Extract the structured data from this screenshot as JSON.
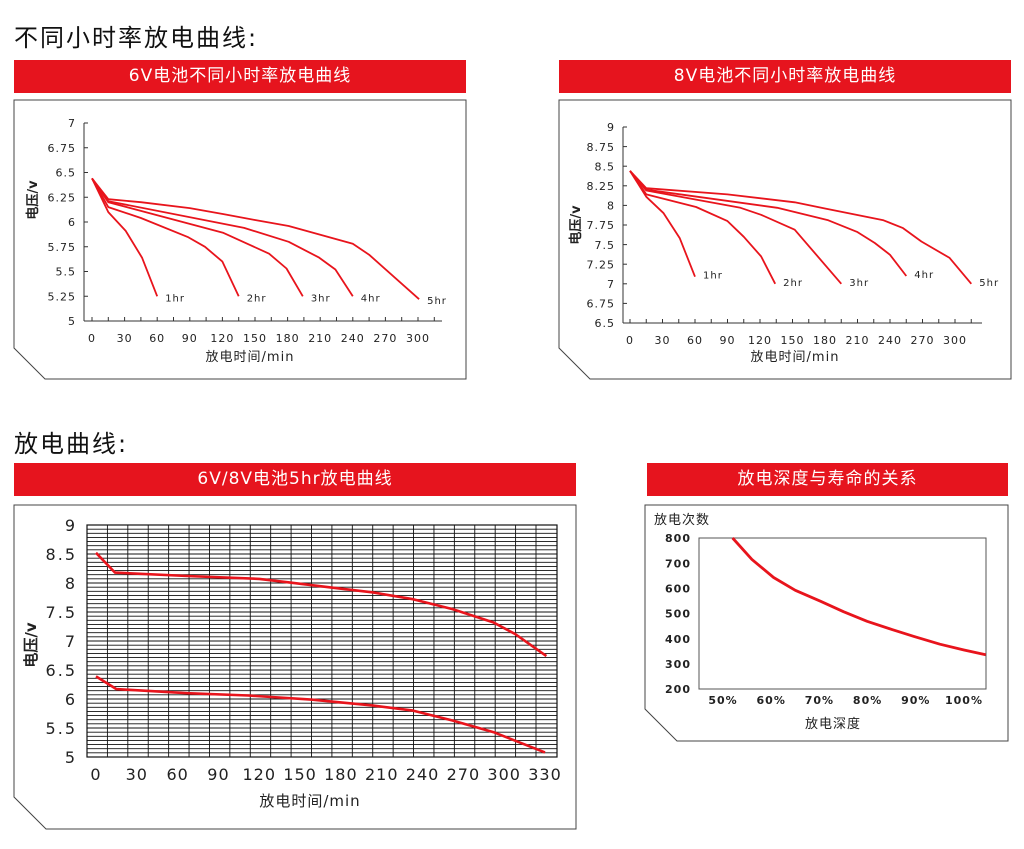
{
  "sections": {
    "top_title": "不同小时率放电曲线:",
    "bottom_title": "放电曲线:"
  },
  "colors": {
    "header": "#e6141e",
    "line": "#e8141c",
    "frame": "#333333"
  },
  "chart_data": [
    {
      "type": "line",
      "title": "6V电池不同小时率放电曲线",
      "xlabel": "放电时间/min",
      "ylabel": "电压/v",
      "xlim": [
        0,
        300
      ],
      "ylim": [
        5,
        7
      ],
      "xticks": [
        "0",
        "30",
        "60",
        "90",
        "120",
        "150",
        "180",
        "210",
        "240",
        "270",
        "300"
      ],
      "yticks": [
        "5",
        "5.25",
        "5.5",
        "5.75",
        "6",
        "6.25",
        "6.5",
        "6.75",
        "7"
      ],
      "grid": false,
      "series": [
        {
          "name": "1hr",
          "points": [
            [
              0,
              6.44
            ],
            [
              15,
              6.1
            ],
            [
              31,
              5.91
            ],
            [
              46,
              5.64
            ],
            [
              60,
              5.25
            ]
          ]
        },
        {
          "name": "2hr",
          "points": [
            [
              0,
              6.44
            ],
            [
              15,
              6.15
            ],
            [
              45,
              6.04
            ],
            [
              88,
              5.85
            ],
            [
              104,
              5.75
            ],
            [
              120,
              5.6
            ],
            [
              135,
              5.25
            ]
          ]
        },
        {
          "name": "3hr",
          "points": [
            [
              0,
              6.44
            ],
            [
              15,
              6.2
            ],
            [
              121,
              5.89
            ],
            [
              143,
              5.78
            ],
            [
              163,
              5.68
            ],
            [
              179,
              5.53
            ],
            [
              194,
              5.25
            ]
          ]
        },
        {
          "name": "4hr",
          "points": [
            [
              0,
              6.44
            ],
            [
              15,
              6.21
            ],
            [
              140,
              5.94
            ],
            [
              181,
              5.8
            ],
            [
              209,
              5.64
            ],
            [
              224,
              5.52
            ],
            [
              240,
              5.25
            ]
          ]
        },
        {
          "name": "5hr",
          "points": [
            [
              0,
              6.44
            ],
            [
              15,
              6.23
            ],
            [
              45,
              6.2
            ],
            [
              90,
              6.14
            ],
            [
              121,
              6.08
            ],
            [
              150,
              6.02
            ],
            [
              181,
              5.96
            ],
            [
              240,
              5.78
            ],
            [
              255,
              5.67
            ],
            [
              301,
              5.22
            ]
          ]
        }
      ]
    },
    {
      "type": "line",
      "title": "8V电池不同小时率放电曲线",
      "xlabel": "放电时间/min",
      "ylabel": "电压/v",
      "xlim": [
        0,
        300
      ],
      "ylim": [
        6.5,
        9
      ],
      "xticks": [
        "0",
        "30",
        "60",
        "90",
        "120",
        "150",
        "180",
        "210",
        "240",
        "270",
        "300"
      ],
      "yticks": [
        "6.5",
        "6.75",
        "7",
        "7.25",
        "7.5",
        "7.75",
        "8",
        "8.25",
        "8.5",
        "8.75",
        "9"
      ],
      "grid": false,
      "series": [
        {
          "name": "1hr",
          "points": [
            [
              0,
              8.44
            ],
            [
              15,
              8.11
            ],
            [
              31,
              7.9
            ],
            [
              46,
              7.58
            ],
            [
              60,
              7.09
            ]
          ]
        },
        {
          "name": "2hr",
          "points": [
            [
              0,
              8.44
            ],
            [
              15,
              8.14
            ],
            [
              61,
              7.98
            ],
            [
              90,
              7.8
            ],
            [
              105,
              7.6
            ],
            [
              121,
              7.35
            ],
            [
              134,
              7.0
            ]
          ]
        },
        {
          "name": "3hr",
          "points": [
            [
              0,
              8.44
            ],
            [
              15,
              8.19
            ],
            [
              102,
              7.97
            ],
            [
              121,
              7.88
            ],
            [
              152,
              7.69
            ],
            [
              195,
              7.0
            ]
          ]
        },
        {
          "name": "4hr",
          "points": [
            [
              0,
              8.44
            ],
            [
              15,
              8.2
            ],
            [
              136,
              7.97
            ],
            [
              183,
              7.81
            ],
            [
              210,
              7.66
            ],
            [
              226,
              7.52
            ],
            [
              240,
              7.37
            ],
            [
              255,
              7.1
            ]
          ]
        },
        {
          "name": "5hr",
          "points": [
            [
              0,
              8.44
            ],
            [
              15,
              8.22
            ],
            [
              90,
              8.14
            ],
            [
              152,
              8.04
            ],
            [
              180,
              7.96
            ],
            [
              234,
              7.81
            ],
            [
              252,
              7.71
            ],
            [
              269,
              7.54
            ],
            [
              295,
              7.33
            ],
            [
              315,
              7.0
            ]
          ]
        }
      ]
    },
    {
      "type": "line",
      "title": "6V/8V电池5hr放电曲线",
      "xlabel": "放电时间/min",
      "ylabel": "电压/v",
      "xlim": [
        0,
        330
      ],
      "ylim": [
        5,
        9
      ],
      "xticks": [
        "0",
        "30",
        "60",
        "90",
        "120",
        "150",
        "180",
        "210",
        "240",
        "270",
        "300",
        "330"
      ],
      "yticks": [
        "5",
        "5.5",
        "6",
        "6.5",
        "7",
        "7.5",
        "8",
        "8.5",
        "9"
      ],
      "grid": true,
      "series": [
        {
          "points": [
            [
              0,
              8.52
            ],
            [
              14,
              8.18
            ],
            [
              67,
              8.12
            ],
            [
              120,
              8.07
            ],
            [
              142,
              8.01
            ],
            [
              177,
              7.91
            ],
            [
              203,
              7.84
            ],
            [
              233,
              7.72
            ],
            [
              262,
              7.55
            ],
            [
              292,
              7.32
            ],
            [
              308,
              7.12
            ],
            [
              331,
              6.74
            ]
          ]
        },
        {
          "points": [
            [
              0,
              6.39
            ],
            [
              15,
              6.17
            ],
            [
              67,
              6.1
            ],
            [
              112,
              6.06
            ],
            [
              158,
              5.99
            ],
            [
              203,
              5.89
            ],
            [
              233,
              5.8
            ],
            [
              262,
              5.63
            ],
            [
              292,
              5.43
            ],
            [
              330,
              5.08
            ]
          ]
        }
      ]
    },
    {
      "type": "line",
      "title": "放电深度与寿命的关系",
      "xlabel": "放电深度",
      "ylabel": "放电次数",
      "xlim": [
        45,
        104.5
      ],
      "ylim": [
        200,
        800
      ],
      "xticks": [
        "50%",
        "60%",
        "70%",
        "80%",
        "90%",
        "100%"
      ],
      "yticks": [
        "200",
        "300",
        "400",
        "500",
        "600",
        "700",
        "800"
      ],
      "grid": false,
      "series": [
        {
          "points": [
            [
              52,
              800
            ],
            [
              56,
              715
            ],
            [
              60.5,
              643
            ],
            [
              65,
              592
            ],
            [
              70.2,
              549
            ],
            [
              75,
              507
            ],
            [
              79.9,
              469
            ],
            [
              85,
              437
            ],
            [
              89.6,
              409
            ],
            [
              95,
              378
            ],
            [
              100,
              355
            ],
            [
              104.5,
              336
            ]
          ]
        }
      ]
    }
  ]
}
